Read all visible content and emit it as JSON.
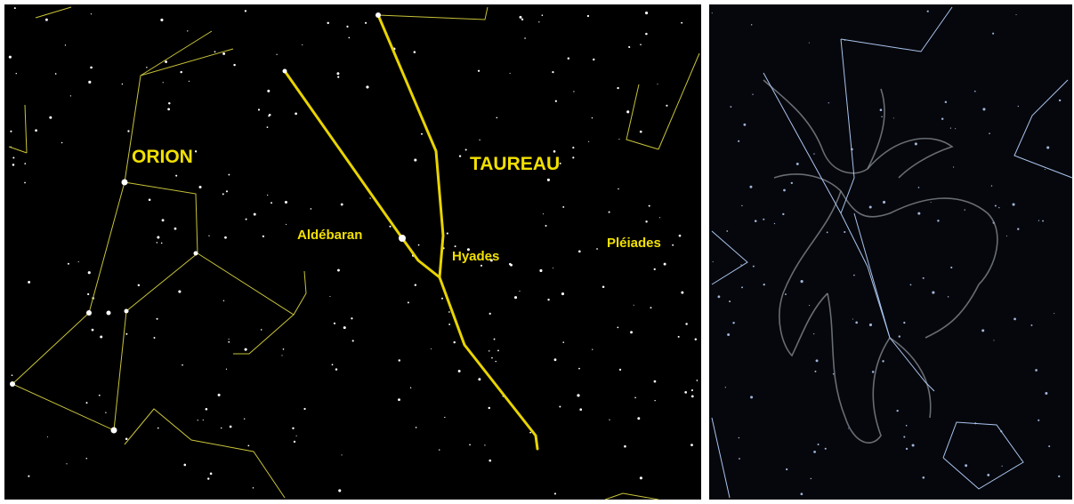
{
  "labels": {
    "orion": "ORION",
    "taureau": "TAUREAU",
    "aldebaran": "Aldébaran",
    "hyades": "Hyades",
    "pleiades": "Pléiades"
  }
}
